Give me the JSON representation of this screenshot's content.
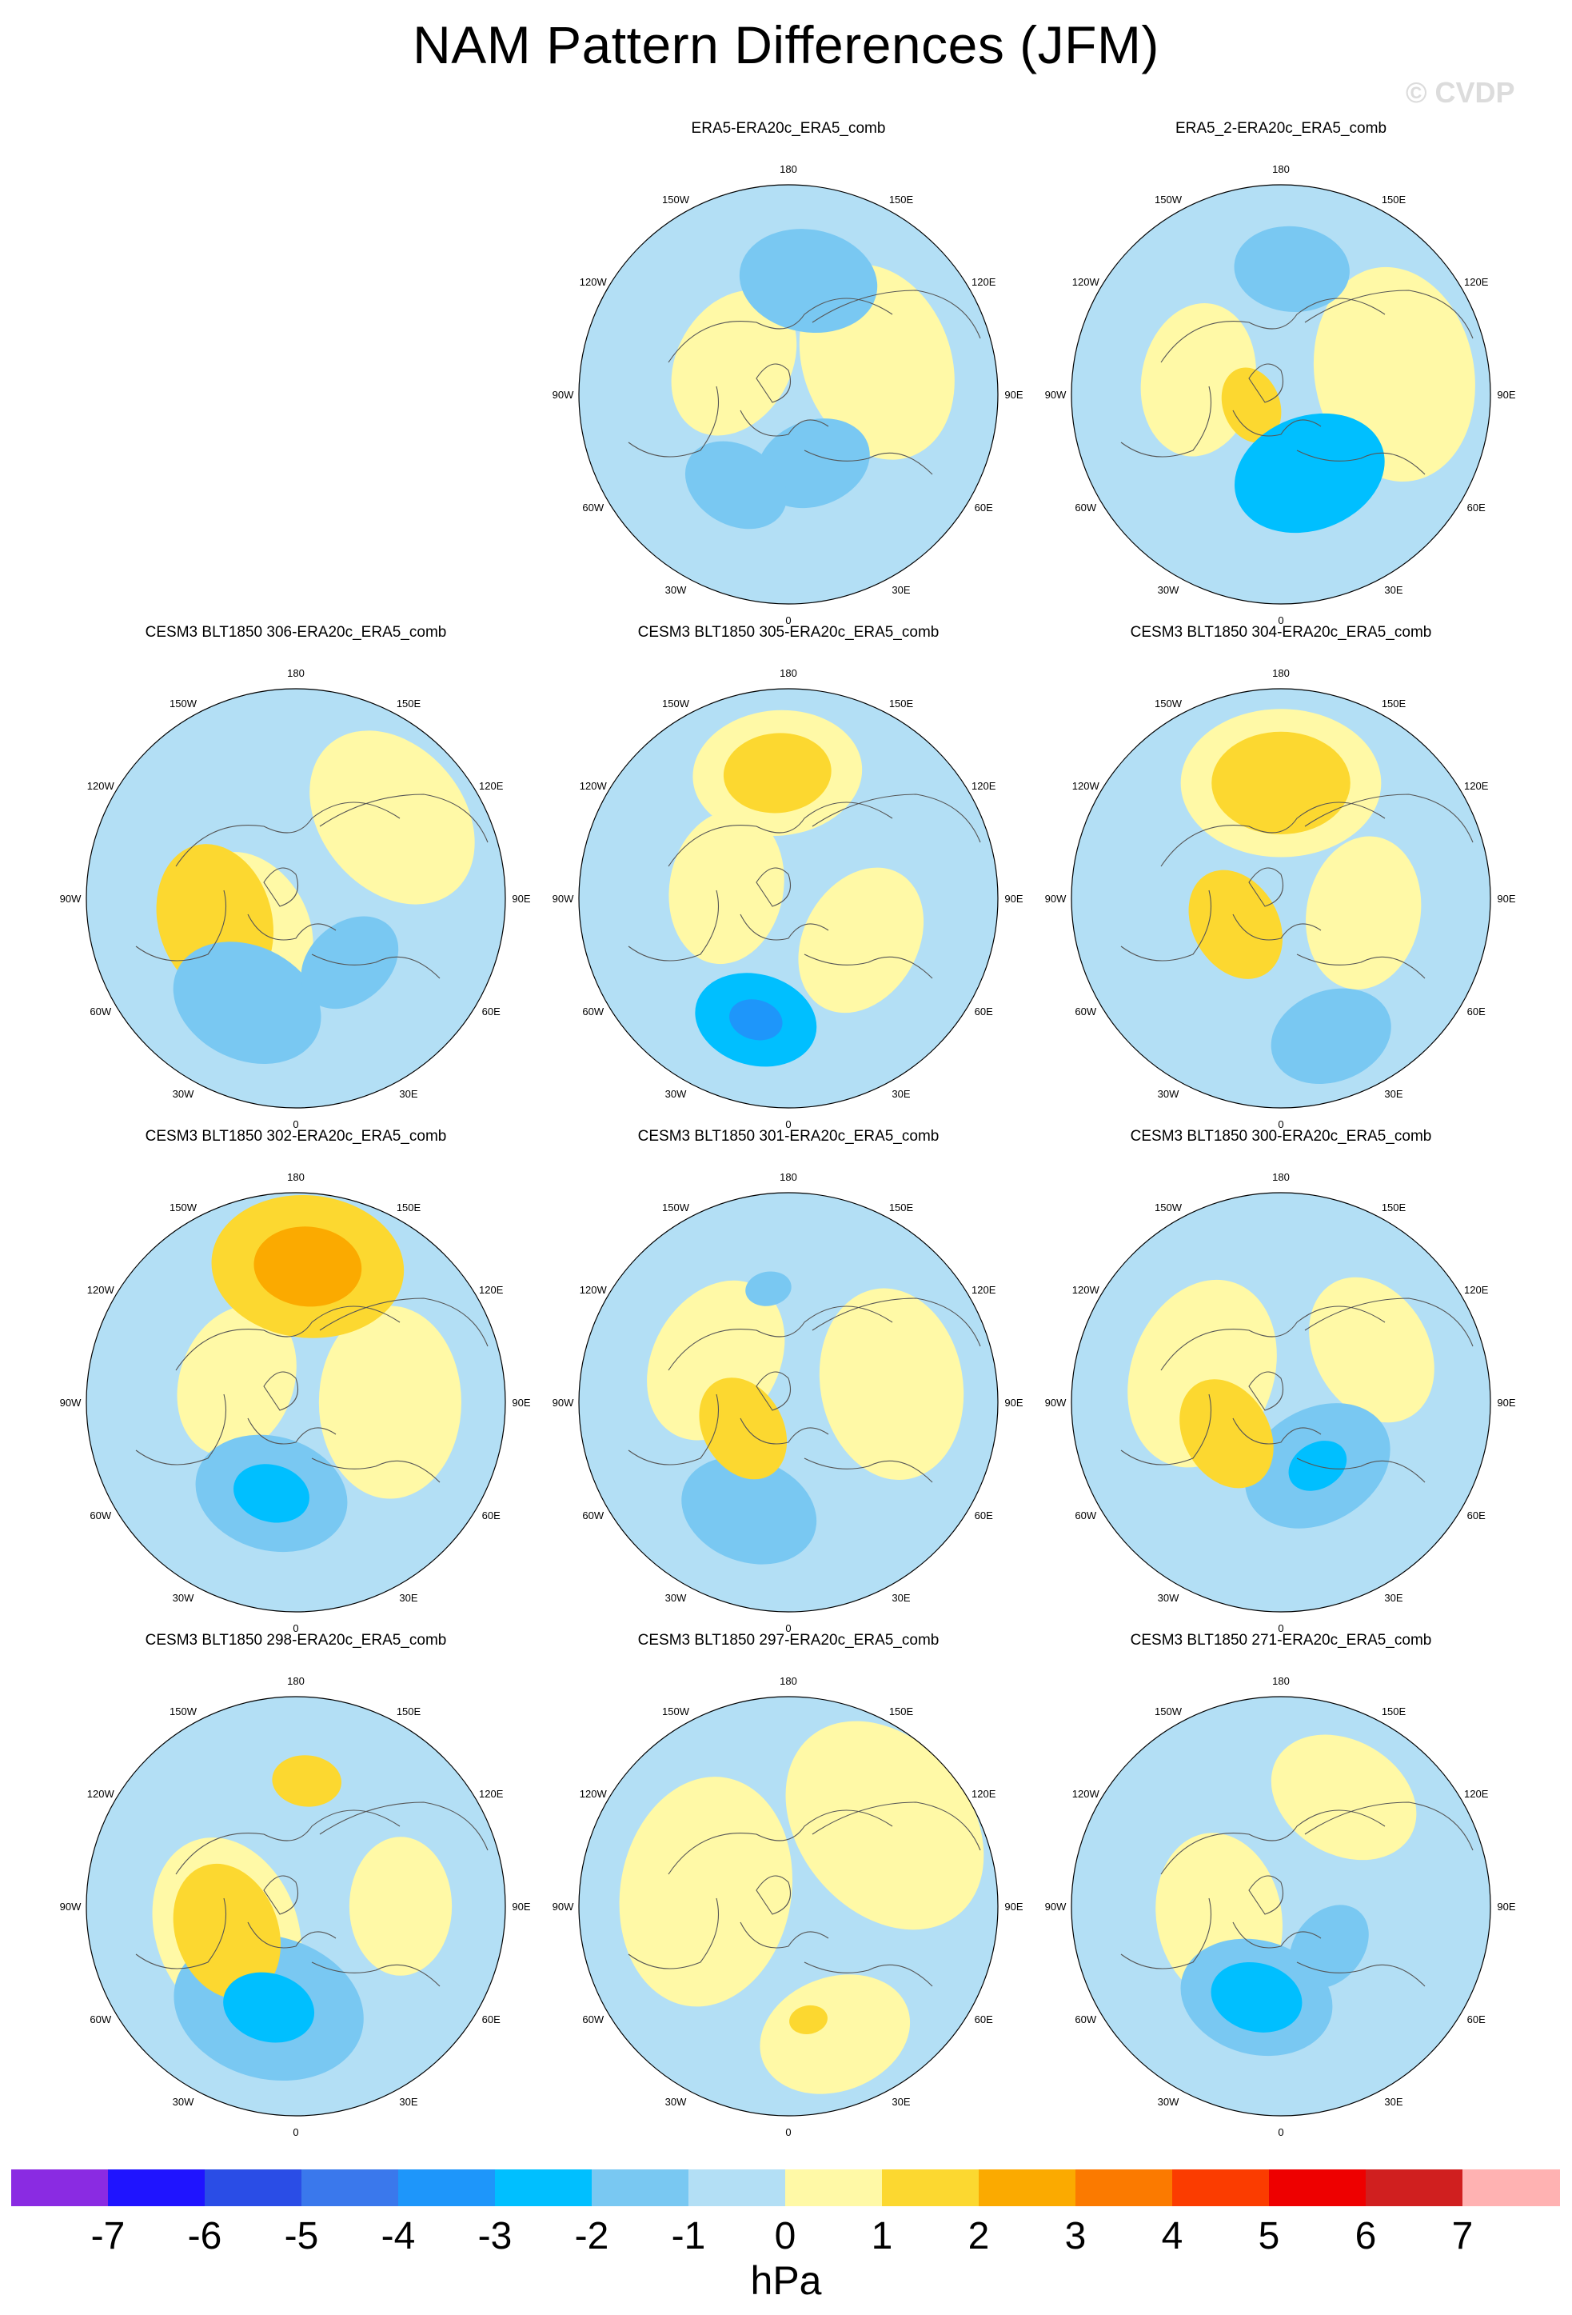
{
  "title": "NAM Pattern Differences (JFM)",
  "watermark": "© CVDP",
  "chart_data": {
    "type": "heatmap",
    "projection": "north polar stereographic",
    "variable": "NAM pattern difference",
    "units": "hPa",
    "colorbar": {
      "ticks": [
        "-7",
        "-6",
        "-5",
        "-4",
        "-3",
        "-2",
        "-1",
        "0",
        "1",
        "2",
        "3",
        "4",
        "5",
        "6",
        "7"
      ],
      "colors": [
        "#8a2be2",
        "#1f14ff",
        "#2a4de6",
        "#3a78ec",
        "#1e96fa",
        "#00bfff",
        "#79c8f2",
        "#b3dff5",
        "#fff9a6",
        "#fcd830",
        "#fbaa00",
        "#fb7a00",
        "#fb3c00",
        "#ee0000",
        "#d01f1f",
        "#ffb2b2"
      ],
      "unit_label": "hPa"
    },
    "longitude_labels": [
      "180",
      "150E",
      "120E",
      "90E",
      "60E",
      "30E",
      "0",
      "30W",
      "60W",
      "90W",
      "120W",
      "150W"
    ],
    "panels": [
      {
        "title": "ERA5-ERA20c_ERA5_comb",
        "features": [
          {
            "lon": 170,
            "r": 0.55,
            "value": -2,
            "size": 0.18
          },
          {
            "lon": 20,
            "r": 0.35,
            "value": -2,
            "size": 0.15
          },
          {
            "lon": 330,
            "r": 0.5,
            "value": -2,
            "size": 0.14
          },
          {
            "lon": 110,
            "r": 0.45,
            "value": 1,
            "size": 0.26
          },
          {
            "lon": 240,
            "r": 0.3,
            "value": 1,
            "size": 0.2
          }
        ]
      },
      {
        "title": "ERA5_2-ERA20c_ERA5_comb",
        "features": [
          {
            "lon": 175,
            "r": 0.6,
            "value": -2,
            "size": 0.15
          },
          {
            "lon": 20,
            "r": 0.4,
            "value": -3,
            "size": 0.2
          },
          {
            "lon": 290,
            "r": 0.15,
            "value": 2,
            "size": 0.1
          },
          {
            "lon": 100,
            "r": 0.55,
            "value": 1,
            "size": 0.28
          },
          {
            "lon": 260,
            "r": 0.4,
            "value": 1,
            "size": 0.2
          }
        ]
      },
      {
        "title": "CESM3 BLT1850 306-ERA20c_ERA5_comb",
        "features": [
          {
            "lon": 285,
            "r": 0.4,
            "value": 2,
            "size": 0.2
          },
          {
            "lon": 300,
            "r": 0.25,
            "value": 1,
            "size": 0.2
          },
          {
            "lon": 335,
            "r": 0.55,
            "value": -2,
            "size": 0.2
          },
          {
            "lon": 40,
            "r": 0.4,
            "value": -2,
            "size": 0.14
          },
          {
            "lon": 130,
            "r": 0.6,
            "value": 1,
            "size": 0.25
          }
        ]
      },
      {
        "title": "CESM3 BLT1850 305-ERA20c_ERA5_comb",
        "features": [
          {
            "lon": 185,
            "r": 0.6,
            "value": 2,
            "size": 0.14
          },
          {
            "lon": 185,
            "r": 0.6,
            "value": 1,
            "size": 0.22
          },
          {
            "lon": 345,
            "r": 0.6,
            "value": -3,
            "size": 0.16
          },
          {
            "lon": 345,
            "r": 0.6,
            "value": -4,
            "size": 0.07
          },
          {
            "lon": 60,
            "r": 0.4,
            "value": 1,
            "size": 0.2
          },
          {
            "lon": 260,
            "r": 0.3,
            "value": 1,
            "size": 0.2
          }
        ]
      },
      {
        "title": "CESM3 BLT1850 304-ERA20c_ERA5_comb",
        "features": [
          {
            "lon": 180,
            "r": 0.55,
            "value": 2,
            "size": 0.18
          },
          {
            "lon": 180,
            "r": 0.55,
            "value": 1,
            "size": 0.26
          },
          {
            "lon": 300,
            "r": 0.25,
            "value": 2,
            "size": 0.15
          },
          {
            "lon": 20,
            "r": 0.7,
            "value": -2,
            "size": 0.16
          },
          {
            "lon": 80,
            "r": 0.4,
            "value": 1,
            "size": 0.2
          }
        ]
      },
      {
        "title": "CESM3 BLT1850 302-ERA20c_ERA5_comb",
        "features": [
          {
            "lon": 175,
            "r": 0.65,
            "value": 2,
            "size": 0.25
          },
          {
            "lon": 175,
            "r": 0.65,
            "value": 3,
            "size": 0.14
          },
          {
            "lon": 345,
            "r": 0.45,
            "value": -2,
            "size": 0.2
          },
          {
            "lon": 345,
            "r": 0.45,
            "value": -3,
            "size": 0.1
          },
          {
            "lon": 90,
            "r": 0.45,
            "value": 1,
            "size": 0.25
          },
          {
            "lon": 250,
            "r": 0.3,
            "value": 1,
            "size": 0.2
          }
        ]
      },
      {
        "title": "CESM3 BLT1850 301-ERA20c_ERA5_comb",
        "features": [
          {
            "lon": 300,
            "r": 0.25,
            "value": 2,
            "size": 0.14
          },
          {
            "lon": 340,
            "r": 0.55,
            "value": -2,
            "size": 0.18
          },
          {
            "lon": 190,
            "r": 0.55,
            "value": -2,
            "size": 0.06
          },
          {
            "lon": 100,
            "r": 0.5,
            "value": 1,
            "size": 0.25
          },
          {
            "lon": 240,
            "r": 0.4,
            "value": 1,
            "size": 0.22
          }
        ]
      },
      {
        "title": "CESM3 BLT1850 300-ERA20c_ERA5_comb",
        "features": [
          {
            "lon": 300,
            "r": 0.3,
            "value": 2,
            "size": 0.15
          },
          {
            "lon": 30,
            "r": 0.35,
            "value": -2,
            "size": 0.2
          },
          {
            "lon": 30,
            "r": 0.35,
            "value": -3,
            "size": 0.08
          },
          {
            "lon": 120,
            "r": 0.5,
            "value": 1,
            "size": 0.2
          },
          {
            "lon": 250,
            "r": 0.4,
            "value": 1,
            "size": 0.25
          }
        ]
      },
      {
        "title": "CESM3 BLT1850 298-ERA20c_ERA5_comb",
        "features": [
          {
            "lon": 290,
            "r": 0.35,
            "value": 2,
            "size": 0.18
          },
          {
            "lon": 290,
            "r": 0.35,
            "value": 1,
            "size": 0.25
          },
          {
            "lon": 175,
            "r": 0.6,
            "value": 2,
            "size": 0.09
          },
          {
            "lon": 345,
            "r": 0.5,
            "value": -2,
            "size": 0.25
          },
          {
            "lon": 345,
            "r": 0.5,
            "value": -3,
            "size": 0.12
          },
          {
            "lon": 90,
            "r": 0.5,
            "value": 1,
            "size": 0.18
          }
        ]
      },
      {
        "title": "CESM3 BLT1850 297-ERA20c_ERA5_comb",
        "features": [
          {
            "lon": 10,
            "r": 0.55,
            "value": 2,
            "size": 0.05
          },
          {
            "lon": 130,
            "r": 0.6,
            "value": 1,
            "size": 0.3
          },
          {
            "lon": 260,
            "r": 0.4,
            "value": 1,
            "size": 0.3
          },
          {
            "lon": 20,
            "r": 0.65,
            "value": 1,
            "size": 0.2
          }
        ]
      },
      {
        "title": "CESM3 BLT1850 271-ERA20c_ERA5_comb",
        "features": [
          {
            "lon": 345,
            "r": 0.45,
            "value": -3,
            "size": 0.12
          },
          {
            "lon": 345,
            "r": 0.45,
            "value": -2,
            "size": 0.2
          },
          {
            "lon": 50,
            "r": 0.3,
            "value": -2,
            "size": 0.12
          },
          {
            "lon": 280,
            "r": 0.3,
            "value": 1,
            "size": 0.22
          },
          {
            "lon": 150,
            "r": 0.6,
            "value": 1,
            "size": 0.2
          }
        ]
      }
    ]
  }
}
